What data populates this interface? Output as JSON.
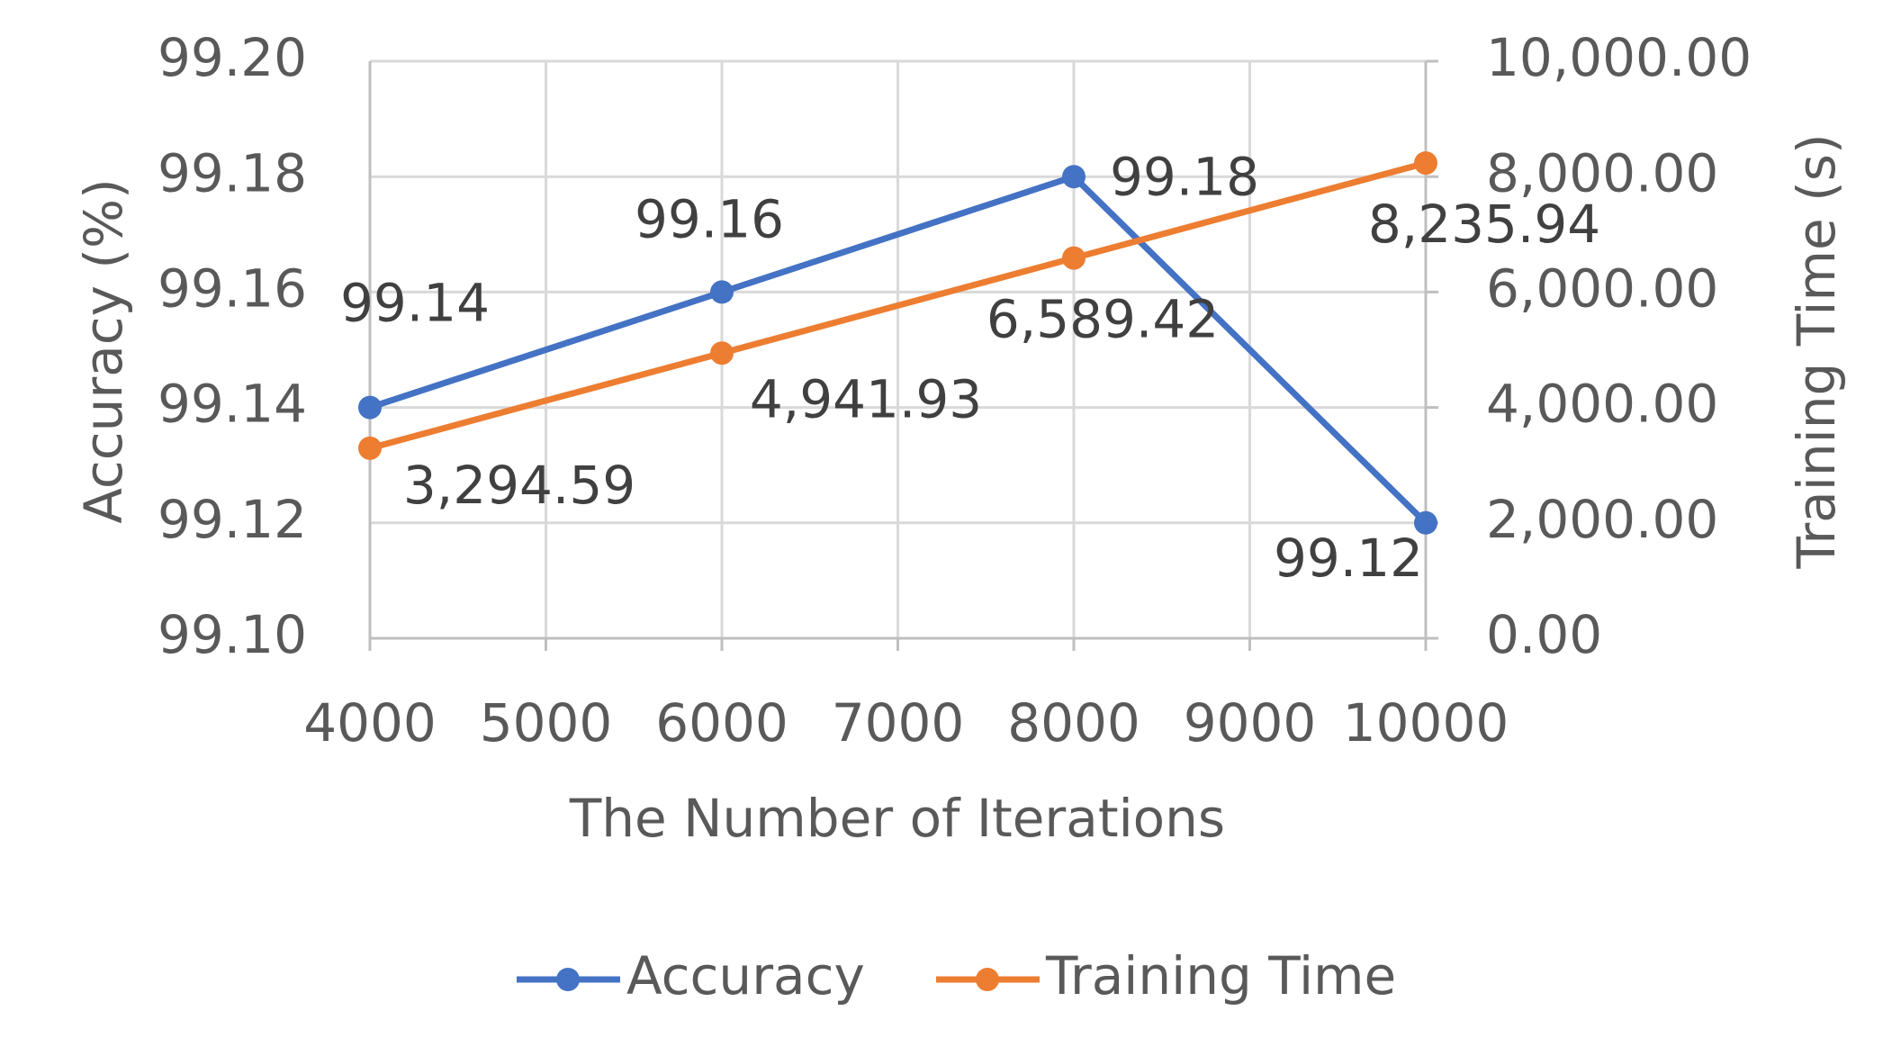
{
  "chart_data": {
    "type": "line",
    "x_label": "The Number of Iterations",
    "y_label": "Accuracy (%)",
    "y2_label": "Training Time (s)",
    "x": [
      4000,
      6000,
      8000,
      10000
    ],
    "xlim": [
      4000,
      10000
    ],
    "xticks": [
      4000,
      5000,
      6000,
      7000,
      8000,
      9000,
      10000
    ],
    "ylim": [
      99.1,
      99.2
    ],
    "yticks": [
      {
        "value": 99.1,
        "label": "99.10"
      },
      99.12,
      99.14,
      99.16,
      99.18,
      {
        "value": 99.2,
        "label": "99.20"
      }
    ],
    "y2lim": [
      0,
      10000
    ],
    "y2ticks": [
      {
        "value": 0,
        "label": "0.00"
      },
      {
        "value": 2000,
        "label": "2,000.00"
      },
      {
        "value": 4000,
        "label": "4,000.00"
      },
      {
        "value": 6000,
        "label": "6,000.00"
      },
      {
        "value": 8000,
        "label": "8,000.00"
      },
      {
        "value": 10000,
        "label": "10,000.00"
      }
    ],
    "grid": true,
    "legend": "bottom",
    "series": [
      {
        "name": "Accuracy",
        "color": "#4472c4",
        "values": [
          99.14,
          99.16,
          99.18,
          99.12
        ]
      },
      {
        "name": "Training Time",
        "color": "#ed7d31",
        "axis": "y2",
        "values": [
          3294.59,
          4941.93,
          6589.42,
          8235.94
        ],
        "value_labels": [
          "3,294.59",
          "4,941.93",
          "6,589.42",
          "8,235.94"
        ]
      }
    ]
  }
}
